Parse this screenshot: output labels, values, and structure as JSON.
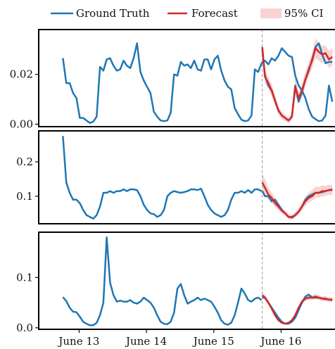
{
  "chart_data": {
    "type": "line",
    "legend": {
      "placement": "top",
      "entries": [
        {
          "label": "Ground Truth",
          "color": "#1f77b4",
          "kind": "line"
        },
        {
          "label": "Forecast",
          "color": "#d62728",
          "kind": "line"
        },
        {
          "label": "95% CI",
          "color": "#f4b6b6",
          "kind": "band"
        }
      ]
    },
    "x_ticks": [
      "June 13",
      "June 14",
      "June 15",
      "June 16"
    ],
    "x_tick_positions": [
      13,
      14,
      15,
      16
    ],
    "x_range": [
      12.4,
      16.8
    ],
    "forecast_start": 15.72,
    "panels": [
      {
        "ylim": [
          -0.001,
          0.038
        ],
        "y_ticks": [
          "0.00",
          "0.02"
        ],
        "y_tick_values": [
          0,
          0.02
        ],
        "ground_truth": {
          "x": [
            12.76,
            12.81,
            12.86,
            12.91,
            12.96,
            13.01,
            13.06,
            13.11,
            13.16,
            13.21,
            13.26,
            13.31,
            13.36,
            13.41,
            13.46,
            13.51,
            13.56,
            13.61,
            13.66,
            13.71,
            13.76,
            13.81,
            13.86,
            13.91,
            13.96,
            14.01,
            14.06,
            14.11,
            14.16,
            14.21,
            14.26,
            14.31,
            14.36,
            14.41,
            14.46,
            14.51,
            14.56,
            14.61,
            14.66,
            14.71,
            14.76,
            14.81,
            14.86,
            14.91,
            14.96,
            15.01,
            15.06,
            15.11,
            15.16,
            15.21,
            15.26,
            15.31,
            15.36,
            15.41,
            15.46,
            15.51,
            15.56,
            15.61,
            15.66,
            15.71,
            15.76,
            15.81,
            15.86,
            15.91,
            15.96,
            16.01,
            16.06,
            16.11,
            16.16,
            16.21,
            16.26,
            16.31,
            16.36,
            16.41,
            16.46,
            16.51,
            16.56,
            16.61,
            16.66,
            16.71,
            16.76
          ],
          "y": [
            0.0265,
            0.0165,
            0.0165,
            0.0125,
            0.0105,
            0.0025,
            0.0025,
            0.0015,
            0.0005,
            0.001,
            0.003,
            0.023,
            0.0215,
            0.026,
            0.0265,
            0.0235,
            0.0215,
            0.022,
            0.0255,
            0.0235,
            0.0225,
            0.0265,
            0.0325,
            0.021,
            0.0175,
            0.015,
            0.0125,
            0.005,
            0.003,
            0.0015,
            0.0012,
            0.0015,
            0.0045,
            0.02,
            0.0195,
            0.025,
            0.0235,
            0.024,
            0.0225,
            0.0255,
            0.022,
            0.0215,
            0.026,
            0.026,
            0.022,
            0.026,
            0.0275,
            0.0215,
            0.0175,
            0.015,
            0.014,
            0.0065,
            0.004,
            0.0018,
            0.0012,
            0.0015,
            0.0035,
            0.022,
            0.021,
            0.0245,
            0.0255,
            0.024,
            0.0265,
            0.0255,
            0.0275,
            0.0305,
            0.029,
            0.0275,
            0.027,
            0.0195,
            0.0155,
            0.0135,
            0.0105,
            0.006,
            0.003,
            0.002,
            0.0012,
            0.0015,
            0.0035,
            0.0155,
            0.009
          ]
        },
        "forecast": {
          "x": [
            15.72,
            15.76,
            15.81,
            15.86,
            15.91,
            15.96,
            16.01,
            16.06,
            16.11,
            16.16,
            16.21,
            16.26,
            16.31,
            16.36,
            16.41,
            16.46,
            16.51,
            16.56,
            16.61,
            16.66,
            16.71,
            16.76
          ],
          "y": [
            0.031,
            0.019,
            0.0165,
            0.0135,
            0.0095,
            0.0055,
            0.0035,
            0.0025,
            0.0015,
            0.003,
            0.015,
            0.0105,
            0.0135,
            0.018,
            0.022,
            0.0255,
            0.0305,
            0.029,
            0.028,
            0.0285,
            0.026,
            0.027
          ],
          "ci_low": [
            0.0285,
            0.0165,
            0.014,
            0.011,
            0.0075,
            0.004,
            0.002,
            0.0012,
            0.0005,
            0.0015,
            0.0115,
            0.008,
            0.0105,
            0.015,
            0.019,
            0.0225,
            0.0265,
            0.0255,
            0.0245,
            0.0255,
            0.0225,
            0.0235
          ],
          "ci_high": [
            0.0335,
            0.0215,
            0.019,
            0.016,
            0.0115,
            0.007,
            0.005,
            0.0038,
            0.0025,
            0.0045,
            0.0185,
            0.013,
            0.0165,
            0.021,
            0.025,
            0.0285,
            0.0345,
            0.0325,
            0.0315,
            0.0315,
            0.0295,
            0.0305
          ]
        },
        "truth_after": {
          "x": [
            15.72,
            15.76,
            15.81,
            15.86,
            15.91,
            15.96,
            16.01,
            16.06,
            16.11,
            16.16,
            16.21,
            16.26,
            16.31,
            16.36,
            16.41,
            16.46,
            16.51,
            16.56,
            16.61,
            16.66,
            16.71,
            16.76
          ],
          "y": [
            0.03,
            0.0195,
            0.0155,
            0.0135,
            0.0095,
            0.0055,
            0.0035,
            0.0025,
            0.0015,
            0.003,
            0.0155,
            0.009,
            0.013,
            0.018,
            0.0215,
            0.026,
            0.031,
            0.0325,
            0.028,
            0.0245,
            0.025,
            0.025
          ]
        }
      },
      {
        "ylim": [
          0.02,
          0.29
        ],
        "y_ticks": [
          "0.1",
          "0.2"
        ],
        "y_tick_values": [
          0.1,
          0.2
        ],
        "ground_truth": {
          "x": [
            12.76,
            12.81,
            12.86,
            12.91,
            12.96,
            13.01,
            13.06,
            13.11,
            13.16,
            13.21,
            13.26,
            13.31,
            13.36,
            13.41,
            13.46,
            13.51,
            13.56,
            13.61,
            13.66,
            13.71,
            13.76,
            13.81,
            13.86,
            13.91,
            13.96,
            14.01,
            14.06,
            14.11,
            14.16,
            14.21,
            14.26,
            14.31,
            14.36,
            14.41,
            14.46,
            14.51,
            14.56,
            14.61,
            14.66,
            14.71,
            14.76,
            14.81,
            14.86,
            14.91,
            14.96,
            15.01,
            15.06,
            15.11,
            15.16,
            15.21,
            15.26,
            15.31,
            15.36,
            15.41,
            15.46,
            15.51,
            15.56,
            15.61,
            15.66,
            15.71
          ],
          "y": [
            0.275,
            0.14,
            0.11,
            0.09,
            0.09,
            0.08,
            0.06,
            0.045,
            0.04,
            0.035,
            0.045,
            0.07,
            0.11,
            0.11,
            0.115,
            0.11,
            0.115,
            0.115,
            0.12,
            0.115,
            0.12,
            0.12,
            0.118,
            0.1,
            0.075,
            0.06,
            0.05,
            0.048,
            0.04,
            0.045,
            0.06,
            0.1,
            0.11,
            0.115,
            0.112,
            0.11,
            0.112,
            0.115,
            0.12,
            0.12,
            0.118,
            0.122,
            0.1,
            0.075,
            0.06,
            0.05,
            0.045,
            0.04,
            0.045,
            0.06,
            0.09,
            0.11,
            0.11,
            0.115,
            0.11,
            0.118,
            0.11,
            0.12,
            0.12,
            0.115
          ]
        },
        "forecast": {
          "x": [
            15.72,
            15.76,
            15.81,
            15.86,
            15.91,
            15.96,
            16.01,
            16.06,
            16.11,
            16.16,
            16.21,
            16.26,
            16.31,
            16.36,
            16.41,
            16.46,
            16.51,
            16.56,
            16.61,
            16.66,
            16.71,
            16.76
          ],
          "y": [
            0.14,
            0.125,
            0.105,
            0.095,
            0.08,
            0.07,
            0.058,
            0.05,
            0.04,
            0.038,
            0.045,
            0.055,
            0.07,
            0.085,
            0.095,
            0.1,
            0.11,
            0.11,
            0.115,
            0.115,
            0.118,
            0.118
          ],
          "ci_low": [
            0.115,
            0.105,
            0.09,
            0.08,
            0.068,
            0.06,
            0.05,
            0.043,
            0.034,
            0.032,
            0.038,
            0.046,
            0.058,
            0.072,
            0.082,
            0.087,
            0.095,
            0.096,
            0.1,
            0.101,
            0.104,
            0.104
          ],
          "ci_high": [
            0.165,
            0.15,
            0.125,
            0.11,
            0.095,
            0.082,
            0.068,
            0.058,
            0.048,
            0.045,
            0.054,
            0.066,
            0.083,
            0.1,
            0.11,
            0.118,
            0.128,
            0.127,
            0.132,
            0.13,
            0.133,
            0.133
          ]
        },
        "truth_after": {
          "x": [
            15.72,
            15.76,
            15.81,
            15.86,
            15.91,
            15.96,
            16.01,
            16.06,
            16.11,
            16.16,
            16.21,
            16.26,
            16.31,
            16.36,
            16.41,
            16.46,
            16.51,
            16.56,
            16.61,
            16.66,
            16.71,
            16.76
          ],
          "y": [
            0.115,
            0.1,
            0.1,
            0.085,
            0.09,
            0.075,
            0.06,
            0.05,
            0.04,
            0.04,
            0.045,
            0.055,
            0.07,
            0.09,
            0.1,
            0.105,
            0.11,
            0.11,
            0.112,
            0.115,
            0.118,
            0.12
          ]
        }
      },
      {
        "ylim": [
          -0.003,
          0.19
        ],
        "y_ticks": [
          "0.0",
          "0.1"
        ],
        "y_tick_values": [
          0,
          0.1
        ],
        "ground_truth": {
          "x": [
            12.76,
            12.81,
            12.86,
            12.91,
            12.96,
            13.01,
            13.06,
            13.11,
            13.16,
            13.21,
            13.26,
            13.31,
            13.36,
            13.41,
            13.46,
            13.51,
            13.56,
            13.61,
            13.66,
            13.71,
            13.76,
            13.81,
            13.86,
            13.91,
            13.96,
            14.01,
            14.06,
            14.11,
            14.16,
            14.21,
            14.26,
            14.31,
            14.36,
            14.41,
            14.46,
            14.51,
            14.56,
            14.61,
            14.66,
            14.71,
            14.76,
            14.81,
            14.86,
            14.91,
            14.96,
            15.01,
            15.06,
            15.11,
            15.16,
            15.21,
            15.26,
            15.31,
            15.36,
            15.41,
            15.46,
            15.51,
            15.56,
            15.61,
            15.66,
            15.71
          ],
          "y": [
            0.061,
            0.053,
            0.04,
            0.032,
            0.031,
            0.022,
            0.012,
            0.008,
            0.005,
            0.005,
            0.01,
            0.025,
            0.05,
            0.18,
            0.09,
            0.065,
            0.052,
            0.054,
            0.052,
            0.052,
            0.055,
            0.05,
            0.048,
            0.052,
            0.06,
            0.055,
            0.05,
            0.04,
            0.025,
            0.012,
            0.008,
            0.007,
            0.012,
            0.03,
            0.078,
            0.087,
            0.065,
            0.048,
            0.052,
            0.055,
            0.06,
            0.055,
            0.058,
            0.055,
            0.052,
            0.042,
            0.03,
            0.015,
            0.008,
            0.006,
            0.01,
            0.025,
            0.05,
            0.078,
            0.068,
            0.055,
            0.052,
            0.058,
            0.06,
            0.055
          ]
        },
        "forecast": {
          "x": [
            15.72,
            15.76,
            15.81,
            15.86,
            15.91,
            15.96,
            16.01,
            16.06,
            16.11,
            16.16,
            16.21,
            16.26,
            16.31,
            16.36,
            16.41,
            16.46,
            16.51,
            16.56,
            16.61,
            16.66,
            16.71,
            16.76
          ],
          "y": [
            0.065,
            0.06,
            0.05,
            0.038,
            0.025,
            0.015,
            0.01,
            0.008,
            0.01,
            0.015,
            0.025,
            0.04,
            0.052,
            0.058,
            0.06,
            0.06,
            0.062,
            0.06,
            0.058,
            0.058,
            0.056,
            0.056
          ],
          "ci_low": [
            0.06,
            0.055,
            0.046,
            0.034,
            0.022,
            0.013,
            0.008,
            0.006,
            0.008,
            0.012,
            0.021,
            0.035,
            0.047,
            0.053,
            0.055,
            0.055,
            0.057,
            0.055,
            0.053,
            0.053,
            0.051,
            0.051
          ],
          "ci_high": [
            0.07,
            0.065,
            0.055,
            0.042,
            0.029,
            0.018,
            0.012,
            0.01,
            0.012,
            0.018,
            0.029,
            0.045,
            0.057,
            0.063,
            0.065,
            0.065,
            0.067,
            0.065,
            0.063,
            0.063,
            0.061,
            0.061
          ]
        },
        "truth_after": {
          "x": [
            15.72,
            15.76,
            15.81,
            15.86,
            15.91,
            15.96,
            16.01,
            16.06,
            16.11,
            16.16,
            16.21,
            16.26,
            16.31,
            16.36,
            16.41,
            16.46,
            16.51,
            16.56,
            16.61,
            16.66,
            16.71,
            16.76
          ],
          "y": [
            0.06,
            0.06,
            0.05,
            0.04,
            0.03,
            0.02,
            0.012,
            0.008,
            0.008,
            0.012,
            0.02,
            0.035,
            0.05,
            0.062,
            0.066,
            0.06,
            0.06,
            0.06,
            0.058,
            0.057,
            0.056,
            0.055
          ]
        }
      }
    ]
  }
}
